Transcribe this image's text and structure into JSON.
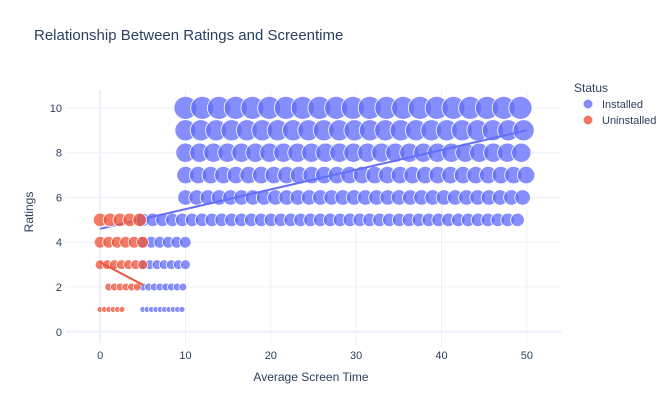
{
  "chart_data": {
    "type": "scatter",
    "title": "Relationship Between Ratings and Screentime",
    "xlabel": "Average Screen Time",
    "ylabel": "Ratings",
    "xlim": [
      -4,
      54
    ],
    "ylim": [
      -0.5,
      10.8
    ],
    "x_ticks": [
      0,
      10,
      20,
      30,
      40,
      50
    ],
    "y_ticks": [
      0,
      2,
      4,
      6,
      8,
      10
    ],
    "grid": true,
    "legend": {
      "title": "Status",
      "placement": "top-right"
    },
    "series": [
      {
        "name": "Installed",
        "color": "#636efa",
        "bands": [
          {
            "y": 10,
            "x_from": 10,
            "x_to": 50,
            "gaps": []
          },
          {
            "y": 9,
            "x_from": 10,
            "x_to": 50,
            "gaps": []
          },
          {
            "y": 8,
            "x_from": 10,
            "x_to": 50,
            "gaps": []
          },
          {
            "y": 7,
            "x_from": 10,
            "x_to": 50,
            "gaps": []
          },
          {
            "y": 6,
            "x_from": 10,
            "x_to": 50,
            "gaps": []
          },
          {
            "y": 5,
            "x_from": 5,
            "x_to": 50,
            "gaps": []
          },
          {
            "y": 4,
            "x_from": 5,
            "x_to": 10,
            "gaps": []
          },
          {
            "y": 3,
            "x_from": 5,
            "x_to": 10,
            "gaps": []
          },
          {
            "y": 2,
            "x_from": 5,
            "x_to": 10,
            "gaps": []
          },
          {
            "y": 1,
            "x_from": 5,
            "x_to": 10,
            "gaps": []
          }
        ],
        "line": [
          [
            0,
            4.6
          ],
          [
            50,
            9.0
          ]
        ]
      },
      {
        "name": "Uninstalled",
        "color": "#ef553b",
        "bands": [
          {
            "y": 5,
            "x_from": 0,
            "x_to": 5
          },
          {
            "y": 4,
            "x_from": 0,
            "x_to": 5
          },
          {
            "y": 3,
            "x_from": 0,
            "x_to": 5
          },
          {
            "y": 2,
            "x_from": 1,
            "x_to": 5
          },
          {
            "y": 1,
            "x_from": 0,
            "x_to": 3
          }
        ],
        "line": [
          [
            0,
            3.1
          ],
          [
            5,
            2.1
          ]
        ]
      }
    ]
  }
}
